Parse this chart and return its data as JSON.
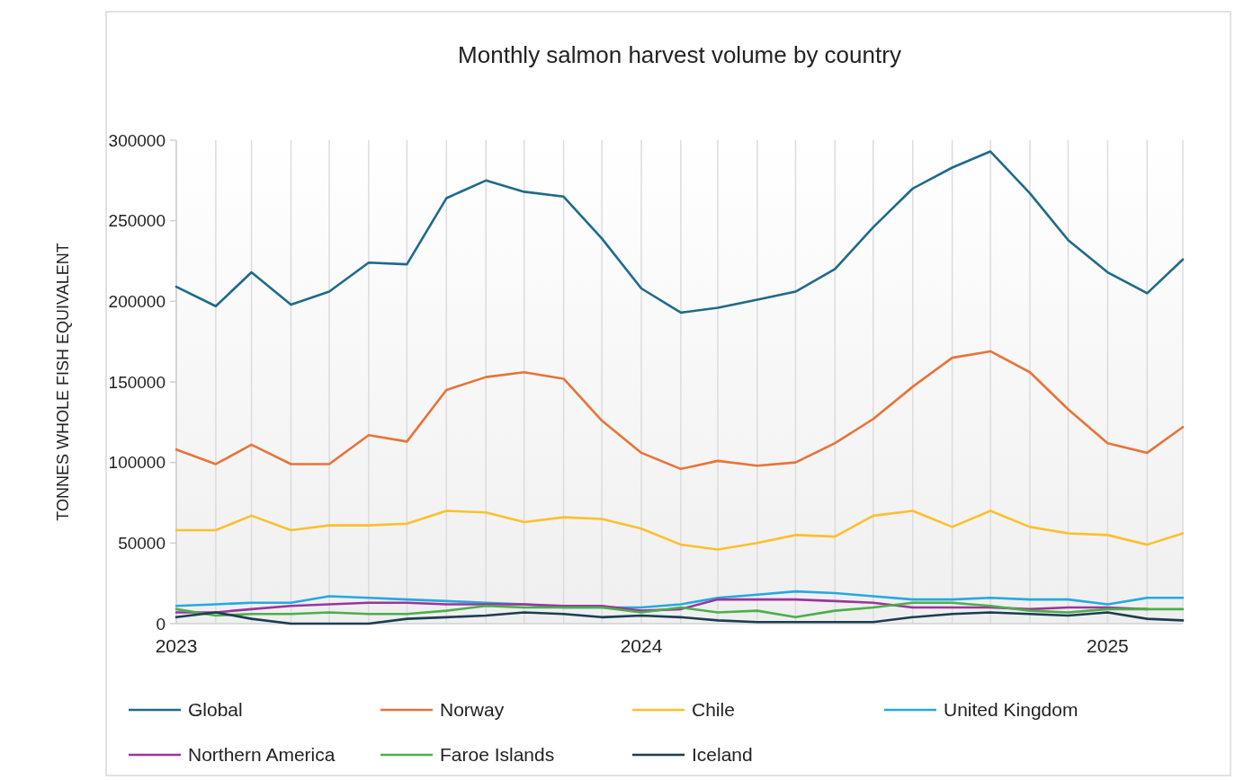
{
  "chart_data": {
    "type": "line",
    "title": "Monthly salmon harvest volume by country",
    "ylabel": "TONNES WHOLE FISH EQUIVALENT",
    "x": [
      "2023-01",
      "2023-02",
      "2023-03",
      "2023-04",
      "2023-05",
      "2023-06",
      "2023-07",
      "2023-08",
      "2023-09",
      "2023-10",
      "2023-11",
      "2023-12",
      "2024-01",
      "2024-02",
      "2024-03",
      "2024-04",
      "2024-05",
      "2024-06",
      "2024-07",
      "2024-08",
      "2024-09",
      "2024-10",
      "2024-11",
      "2024-12",
      "2025-01",
      "2025-02",
      "2025-03"
    ],
    "xlim": [
      "2023-01",
      "2025-03"
    ],
    "xticks": [
      {
        "value": "2023-01",
        "label": "2023"
      },
      {
        "value": "2023-02",
        "label": null
      },
      {
        "value": "2023-03",
        "label": null
      },
      {
        "value": "2023-04",
        "label": null
      },
      {
        "value": "2023-05",
        "label": null
      },
      {
        "value": "2023-06",
        "label": null
      },
      {
        "value": "2023-07",
        "label": null
      },
      {
        "value": "2023-08",
        "label": null
      },
      {
        "value": "2023-09",
        "label": null
      },
      {
        "value": "2023-10",
        "label": null
      },
      {
        "value": "2023-11",
        "label": null
      },
      {
        "value": "2023-12",
        "label": null
      },
      {
        "value": "2024-01",
        "label": "2024"
      },
      {
        "value": "2024-02",
        "label": null
      },
      {
        "value": "2024-03",
        "label": null
      },
      {
        "value": "2024-04",
        "label": null
      },
      {
        "value": "2024-05",
        "label": null
      },
      {
        "value": "2024-06",
        "label": null
      },
      {
        "value": "2024-07",
        "label": null
      },
      {
        "value": "2024-08",
        "label": null
      },
      {
        "value": "2024-09",
        "label": null
      },
      {
        "value": "2024-10",
        "label": null
      },
      {
        "value": "2024-11",
        "label": null
      },
      {
        "value": "2024-12",
        "label": null
      },
      {
        "value": "2025-01",
        "label": "2025"
      },
      {
        "value": "2025-02",
        "label": null
      },
      {
        "value": "2025-03",
        "label": null
      }
    ],
    "ylim": [
      0,
      300000
    ],
    "yticks": [
      0,
      50000,
      100000,
      150000,
      200000,
      250000,
      300000
    ],
    "grid": "x",
    "legend": "bottom",
    "marker": "none",
    "line_style": "solid",
    "series": [
      {
        "name": "Global",
        "color": "#1f6a8a",
        "values": [
          209000,
          197000,
          218000,
          198000,
          206000,
          224000,
          223000,
          264000,
          275000,
          268000,
          265000,
          239000,
          208000,
          193000,
          196000,
          201000,
          206000,
          220000,
          246000,
          270000,
          283000,
          293000,
          267000,
          238000,
          218000,
          205000,
          226000
        ]
      },
      {
        "name": "Norway",
        "color": "#e8733a",
        "values": [
          108000,
          99000,
          111000,
          99000,
          99000,
          117000,
          113000,
          145000,
          153000,
          156000,
          152000,
          126000,
          106000,
          96000,
          101000,
          98000,
          100000,
          112000,
          127000,
          147000,
          165000,
          169000,
          156000,
          133000,
          112000,
          106000,
          122000
        ]
      },
      {
        "name": "Chile",
        "color": "#fdbf2d",
        "values": [
          58000,
          58000,
          67000,
          58000,
          61000,
          61000,
          62000,
          70000,
          69000,
          63000,
          66000,
          65000,
          59000,
          49000,
          46000,
          50000,
          55000,
          54000,
          67000,
          70000,
          60000,
          70000,
          60000,
          56000,
          55000,
          49000,
          56000
        ]
      },
      {
        "name": "United Kingdom",
        "color": "#25a9e0",
        "values": [
          11000,
          12000,
          13000,
          13000,
          17000,
          16000,
          15000,
          14000,
          13000,
          12000,
          10000,
          10000,
          10000,
          12000,
          16000,
          18000,
          20000,
          19000,
          17000,
          15000,
          15000,
          16000,
          15000,
          15000,
          12000,
          16000,
          16000
        ]
      },
      {
        "name": "Northern America",
        "color": "#9b359b",
        "values": [
          7000,
          7000,
          9000,
          11000,
          12000,
          13000,
          13000,
          12000,
          12000,
          12000,
          11000,
          11000,
          8000,
          9000,
          15000,
          15000,
          15000,
          14000,
          13000,
          10000,
          10000,
          10000,
          9000,
          10000,
          10000,
          9000,
          null
        ]
      },
      {
        "name": "Faroe Islands",
        "color": "#4caf4a",
        "values": [
          9000,
          5000,
          6000,
          6000,
          7000,
          6000,
          6000,
          8000,
          11000,
          10000,
          10000,
          10000,
          7000,
          10000,
          7000,
          8000,
          4000,
          8000,
          10000,
          13000,
          13000,
          11000,
          8000,
          7000,
          9000,
          9000,
          9000
        ]
      },
      {
        "name": "Iceland",
        "color": "#1c3d52",
        "values": [
          4000,
          7000,
          3000,
          0,
          0,
          0,
          3000,
          4000,
          5000,
          7000,
          6000,
          4000,
          5000,
          4000,
          2000,
          1000,
          1000,
          1000,
          1000,
          4000,
          6000,
          7000,
          6000,
          5000,
          7000,
          3000,
          2000
        ]
      }
    ]
  }
}
